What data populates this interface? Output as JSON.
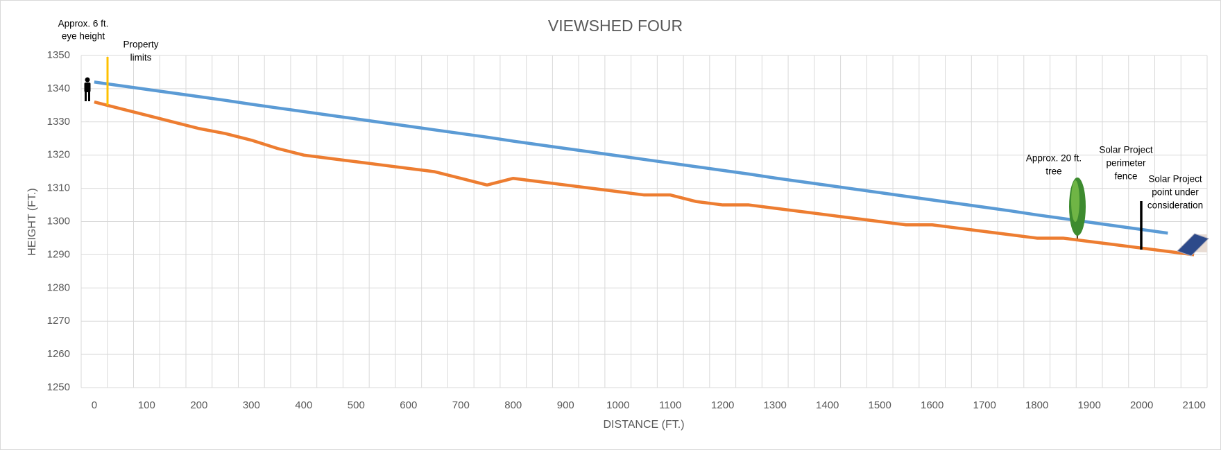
{
  "chart_data": {
    "type": "line",
    "title": "VIEWSHED  FOUR",
    "x_label": "DISTANCE (FT.)",
    "y_label": "HEIGHT (FT.)",
    "categories": [
      0,
      null,
      100,
      null,
      200,
      null,
      300,
      null,
      400,
      null,
      500,
      null,
      600,
      null,
      700,
      null,
      800,
      null,
      900,
      null,
      1000,
      null,
      1100,
      null,
      1200,
      null,
      1300,
      null,
      1400,
      null,
      1500,
      null,
      1600,
      null,
      1700,
      null,
      1800,
      null,
      1900,
      null,
      2000,
      null,
      2100
    ],
    "series": [
      {
        "color": "#5b9bd5",
        "values": [
          1342,
          1340.9,
          1339.8,
          1338.7,
          1337.6,
          1336.5,
          1335.3,
          1334.2,
          1333.1,
          1332,
          1330.9,
          1329.8,
          1328.7,
          1327.6,
          1326.5,
          1325.4,
          1324.2,
          1323.1,
          1322,
          1320.9,
          1319.8,
          1318.7,
          1317.6,
          1316.5,
          1315.4,
          1314.3,
          1313.1,
          1312,
          1310.9,
          1309.8,
          1308.7,
          1307.6,
          1306.5,
          1305.4,
          1304.3,
          1303.2,
          1302,
          1300.9,
          1299.8,
          1298.7,
          1297.6,
          1296.5,
          null
        ]
      },
      {
        "color": "#ed7d31",
        "values": [
          1336,
          1334,
          1332,
          1330,
          1328,
          1326.5,
          1324.5,
          1322,
          1320,
          1319,
          1318,
          1317,
          1316,
          1315,
          1313,
          1311,
          1313,
          1312,
          1311,
          1310,
          1309,
          1308,
          1308,
          1306,
          1305,
          1305,
          1304,
          1303,
          1302,
          1301,
          1300,
          1299,
          1299,
          1298,
          1297,
          1296,
          1295,
          1295,
          1294,
          1293,
          1292,
          1291,
          1290
        ]
      }
    ],
    "ylim": [
      1250,
      1350
    ],
    "yticks": [
      1250,
      1260,
      1270,
      1280,
      1290,
      1300,
      1310,
      1320,
      1330,
      1340,
      1350
    ],
    "grid": true,
    "annotations": [
      {
        "lines": [
          "Approx. 6 ft.",
          "eye height"
        ]
      },
      {
        "lines": [
          "Property",
          "limits"
        ]
      },
      {
        "lines": [
          "Approx. 20 ft.",
          "tree"
        ]
      },
      {
        "lines": [
          "Solar Project",
          "perimeter",
          "fence"
        ]
      },
      {
        "lines": [
          "Solar Project",
          "point under",
          "consideration"
        ]
      }
    ]
  }
}
